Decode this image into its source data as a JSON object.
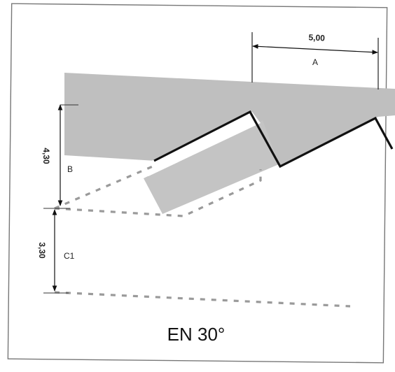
{
  "dimensions": {
    "width_label": "5,00",
    "width_letter": "A",
    "upper_height_label": "4,30",
    "upper_height_letter": "B",
    "lower_height_label": "3,30",
    "lower_height_letter": "C1"
  },
  "caption": "EN 30°"
}
